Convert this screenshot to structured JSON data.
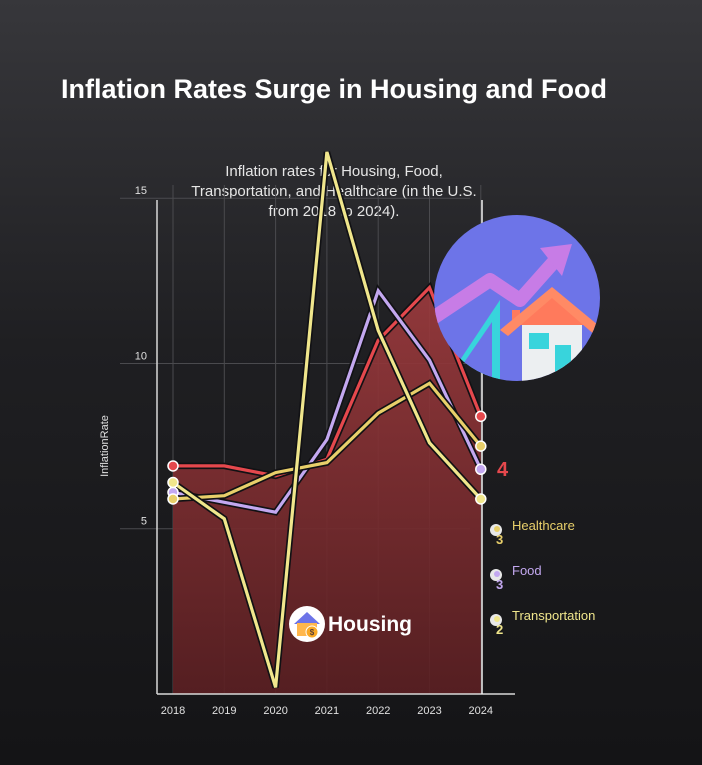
{
  "chart_data": {
    "type": "line",
    "title": "Inflation Rates Surge in Housing and Food",
    "subtitle_lines": [
      "Inflation rates for Housing, Food,",
      "Transportation, and Healthcare (in the U.S.",
      "from 2018 to 2024)."
    ],
    "xlabel": "",
    "ylabel": "InflationRate",
    "x": [
      "2018",
      "2019",
      "2020",
      "2021",
      "2022",
      "2023",
      "2024"
    ],
    "yticks": [
      5,
      10,
      15
    ],
    "ylim": [
      0,
      15.4
    ],
    "grid": true,
    "series": [
      {
        "name": "Housing",
        "color": "#e5484d",
        "fill": true,
        "values": [
          6.9,
          6.9,
          6.6,
          7.1,
          10.7,
          12.3,
          8.4
        ],
        "end_label": "4"
      },
      {
        "name": "Food",
        "color": "#c3a8f0",
        "fill": false,
        "values": [
          6.1,
          5.8,
          5.5,
          7.7,
          12.2,
          10.1,
          6.8
        ],
        "end_label": "3"
      },
      {
        "name": "Healthcare",
        "color": "#e8cf6a",
        "fill": false,
        "values": [
          5.9,
          6.0,
          6.7,
          7.0,
          8.5,
          9.4,
          7.5
        ],
        "end_label": "3"
      },
      {
        "name": "Transportation",
        "color": "#f0e68c",
        "fill": false,
        "values": [
          6.4,
          5.3,
          0.2,
          16.4,
          11.0,
          7.6,
          5.9
        ],
        "end_label": "2"
      }
    ]
  },
  "icons": {
    "hero": "house-growth-chart-icon",
    "housing_badge": "house-dollar-icon"
  },
  "colors": {
    "background_top": "#37373b",
    "background_bottom": "#141416",
    "axis": "#d8d8d8",
    "grid": "#4a4a4e",
    "text": "#ffffff"
  }
}
